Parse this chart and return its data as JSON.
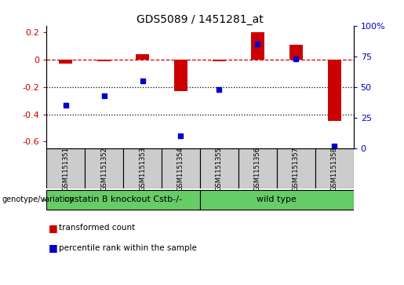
{
  "title": "GDS5089 / 1451281_at",
  "samples": [
    "GSM1151351",
    "GSM1151352",
    "GSM1151353",
    "GSM1151354",
    "GSM1151355",
    "GSM1151356",
    "GSM1151357",
    "GSM1151358"
  ],
  "red_values": [
    -0.03,
    -0.01,
    0.04,
    -0.23,
    -0.01,
    0.2,
    0.11,
    -0.45
  ],
  "blue_values": [
    35,
    43,
    55,
    10,
    48,
    85,
    73,
    2
  ],
  "groups": [
    {
      "label": "cystatin B knockout Cstb-/-",
      "start": 0,
      "end": 3,
      "color": "#66cc66"
    },
    {
      "label": "wild type",
      "start": 4,
      "end": 7,
      "color": "#66cc66"
    }
  ],
  "ylim_left": [
    -0.65,
    0.25
  ],
  "ylim_right": [
    0,
    100
  ],
  "left_ticks": [
    0.2,
    0.0,
    -0.2,
    -0.4,
    -0.6
  ],
  "right_ticks": [
    100,
    75,
    50,
    25,
    0
  ],
  "red_color": "#cc0000",
  "blue_color": "#0000cc",
  "bar_width": 0.35,
  "blue_marker_size": 5,
  "legend_red": "transformed count",
  "legend_blue": "percentile rank within the sample",
  "genotype_label": "genotype/variation",
  "sample_box_color": "#cccccc",
  "title_fontsize": 10,
  "tick_fontsize": 8,
  "label_fontsize": 6,
  "group_fontsize": 8
}
